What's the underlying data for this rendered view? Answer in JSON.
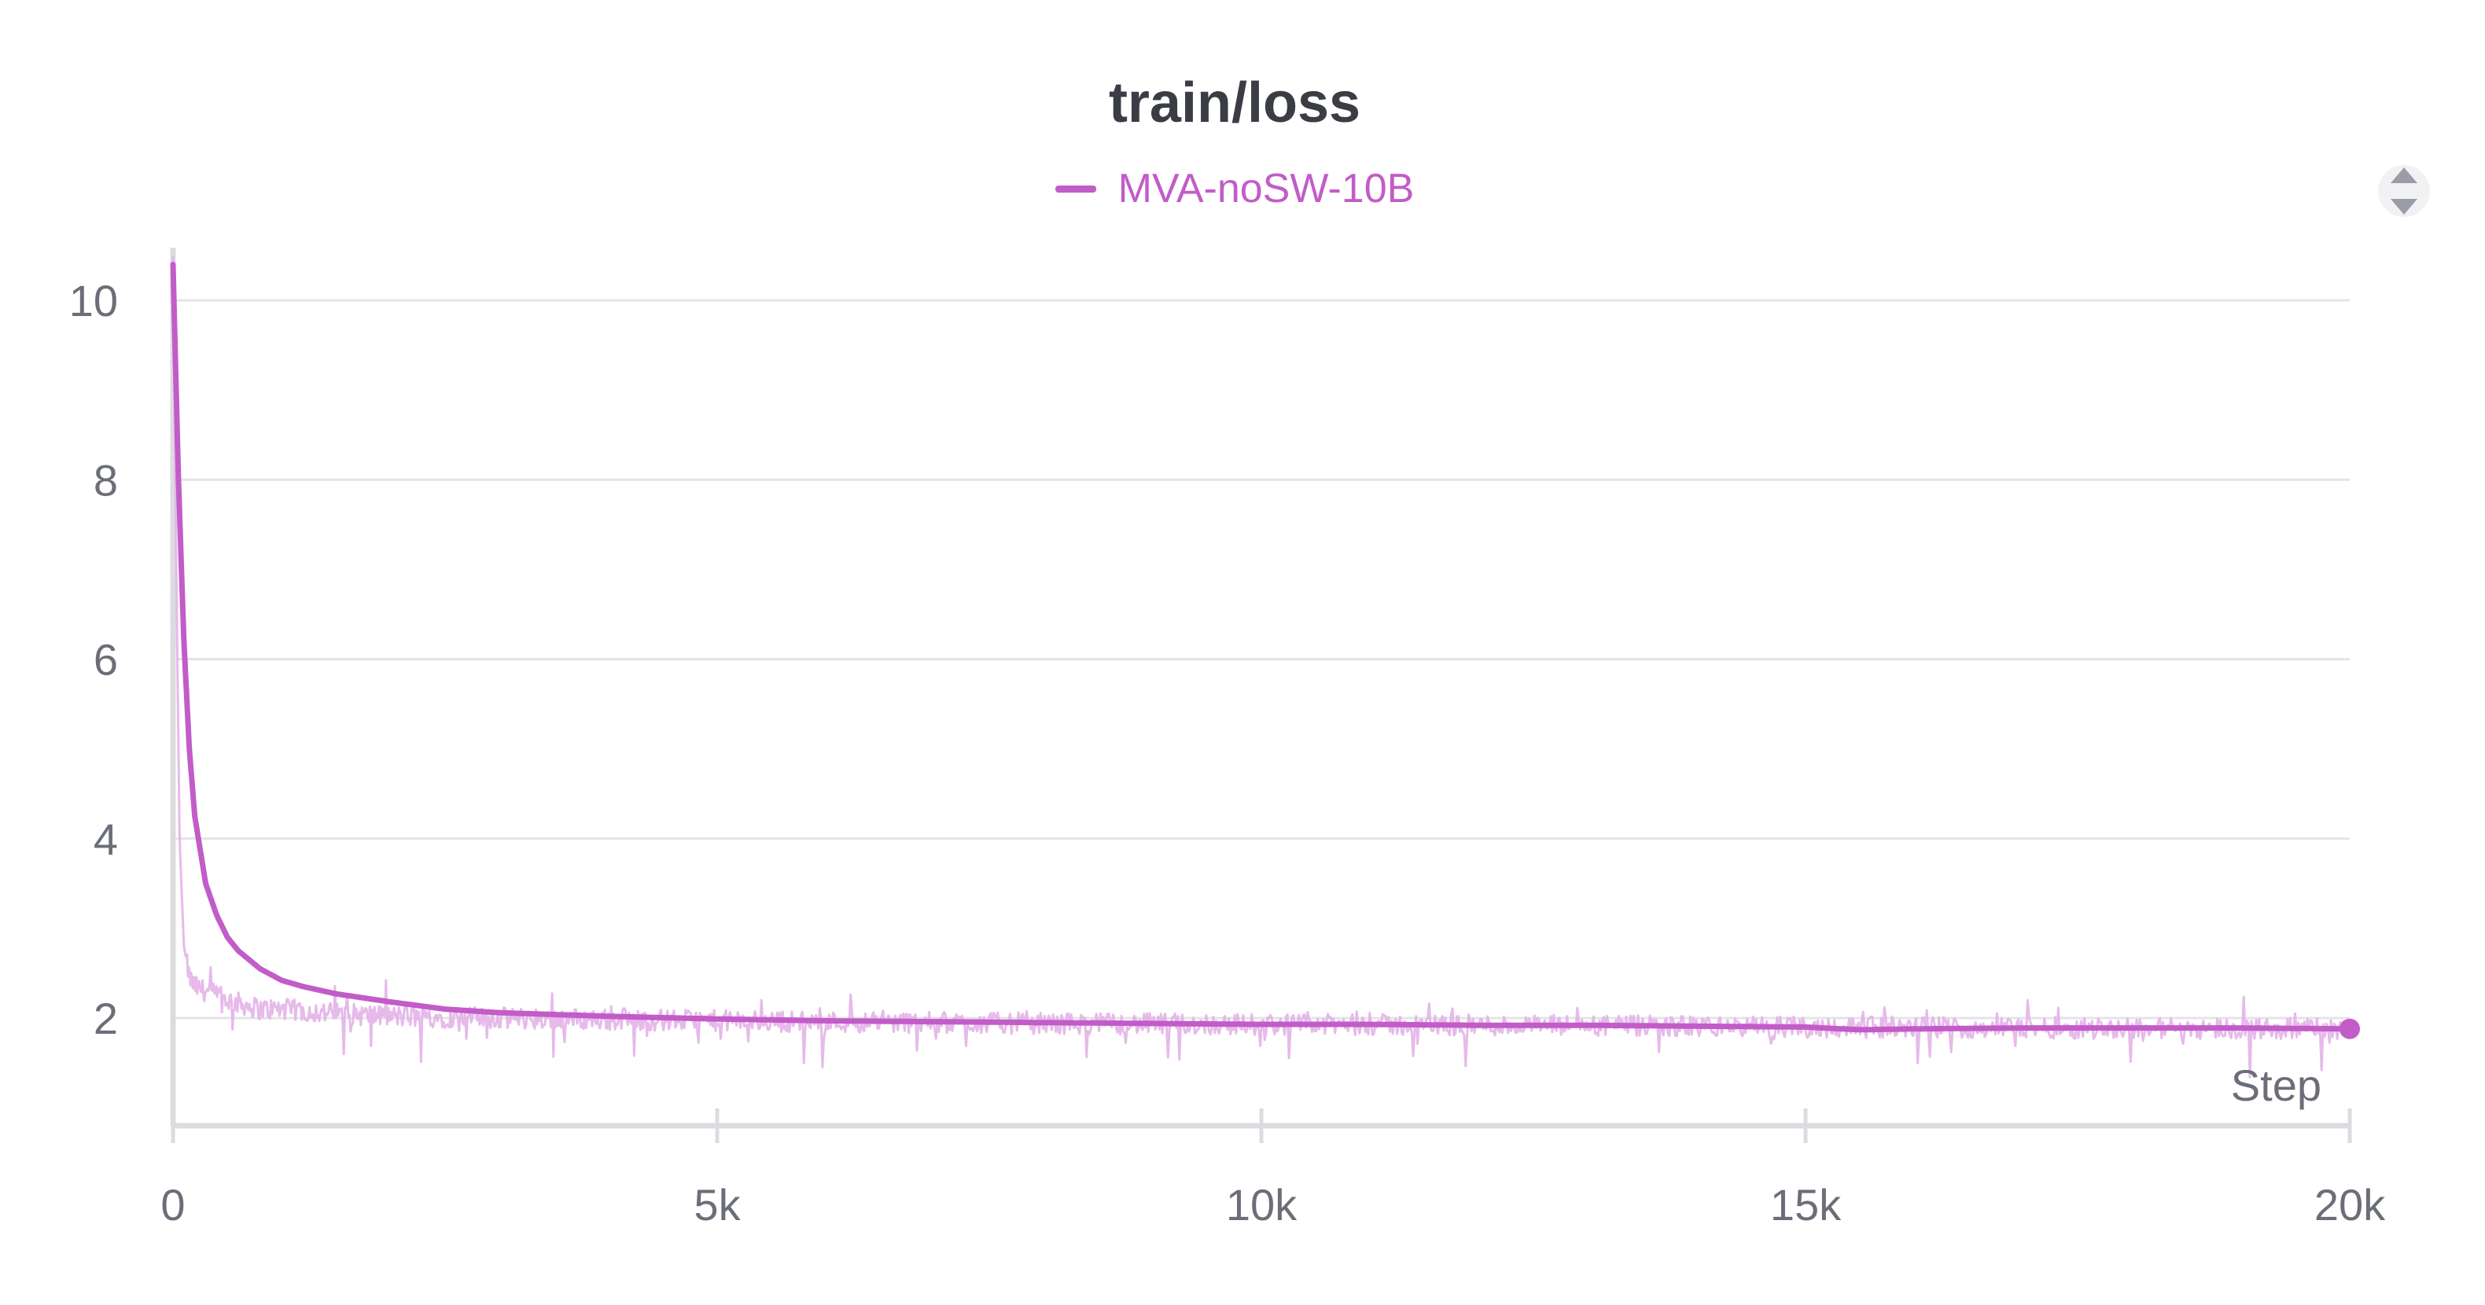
{
  "colors": {
    "series": "#c25cc8",
    "raw": "#e3b3e8",
    "grid": "#e4e4e8",
    "axis": "#dcdce0",
    "tick_text": "#6b6d78"
  },
  "legend_toggle_icon": "chevron-up-down-icon",
  "chart_data": {
    "type": "line",
    "title": "train/loss",
    "xlabel": "Step",
    "ylabel": "",
    "xlim": [
      0,
      20000
    ],
    "ylim": [
      0.8,
      10.5
    ],
    "x_ticks": [
      0,
      5000,
      10000,
      15000,
      20000
    ],
    "x_tick_labels": [
      "0",
      "5k",
      "10k",
      "15k",
      "20k"
    ],
    "y_ticks": [
      2,
      4,
      6,
      8,
      10
    ],
    "y_tick_labels": [
      "2",
      "4",
      "6",
      "8",
      "10"
    ],
    "grid": true,
    "legend_position": "top-center",
    "series": [
      {
        "name": "MVA-noSW-10B",
        "smoothed": {
          "x": [
            0,
            50,
            100,
            150,
            200,
            300,
            400,
            500,
            600,
            800,
            1000,
            1200,
            1500,
            2000,
            2500,
            3000,
            4000,
            5000,
            6000,
            7000,
            8000,
            9000,
            10000,
            11000,
            12000,
            13000,
            14000,
            15000,
            15500,
            16000,
            17000,
            18000,
            19000,
            20000
          ],
          "y": [
            10.4,
            8.0,
            6.2,
            5.0,
            4.25,
            3.5,
            3.15,
            2.9,
            2.75,
            2.55,
            2.42,
            2.35,
            2.27,
            2.18,
            2.1,
            2.06,
            2.02,
            1.99,
            1.97,
            1.96,
            1.95,
            1.94,
            1.93,
            1.93,
            1.92,
            1.92,
            1.91,
            1.9,
            1.87,
            1.88,
            1.89,
            1.89,
            1.89,
            1.88
          ]
        },
        "raw": {
          "x": [
            0,
            30,
            60,
            100,
            150,
            200,
            300,
            500,
            800,
            1000,
            1500,
            2000,
            3000,
            5000,
            8000,
            10000,
            12000,
            15000,
            18000,
            20000
          ],
          "y": [
            10.5,
            7.0,
            4.0,
            2.8,
            2.45,
            2.35,
            2.3,
            2.2,
            2.1,
            2.1,
            2.05,
            2.02,
            2.0,
            1.97,
            1.94,
            1.93,
            1.92,
            1.9,
            1.89,
            1.88
          ],
          "noise": 0.12
        }
      }
    ]
  }
}
